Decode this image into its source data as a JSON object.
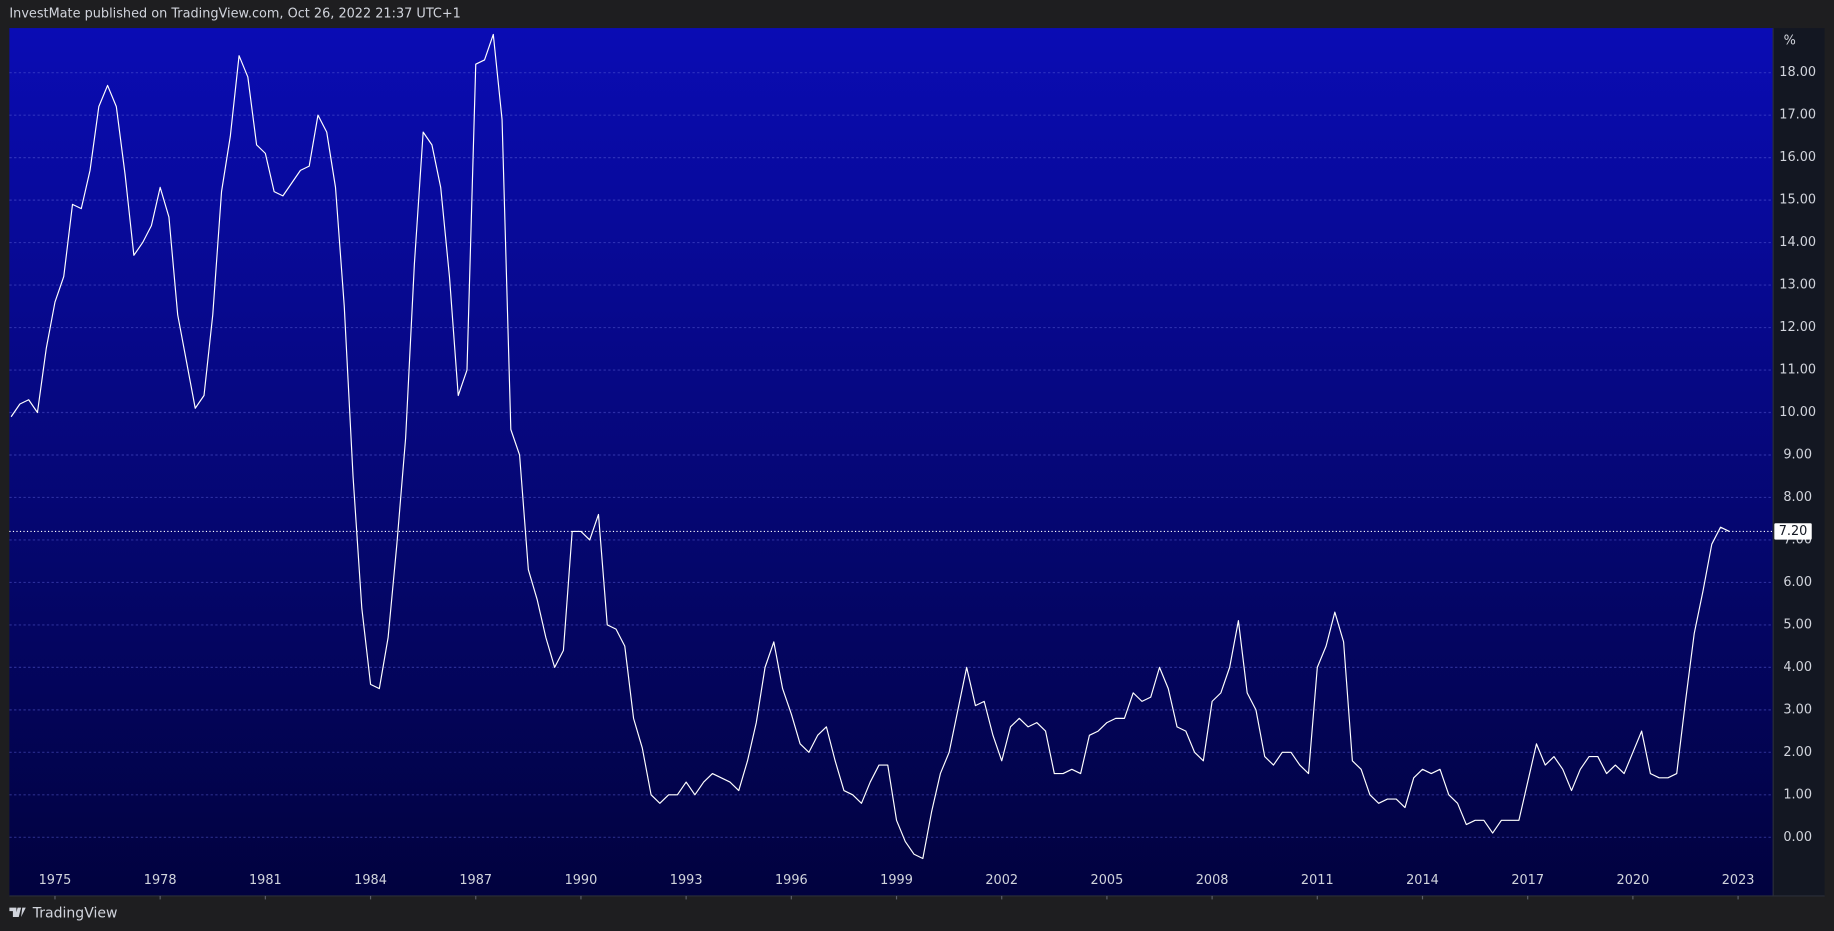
{
  "header": "InvestMate published on TradingView.com, Oct 26, 2022 21:37 UTC+1",
  "footer": "TradingView",
  "chart_data": {
    "type": "line",
    "unit": "%",
    "color": "#ffffff",
    "grid": true,
    "last_label": "7.20",
    "xlim": [
      1973.7,
      2024.0
    ],
    "xticks": [
      1975,
      1978,
      1981,
      1984,
      1987,
      1990,
      1993,
      1996,
      1999,
      2002,
      2005,
      2008,
      2011,
      2014,
      2017,
      2020,
      2023
    ],
    "ylim": [
      -1.38,
      19.05
    ],
    "yticks": [
      {
        "value": 0,
        "label": "0.00"
      },
      {
        "value": 1,
        "label": "1.00"
      },
      {
        "value": 2,
        "label": "2.00"
      },
      {
        "value": 3,
        "label": "3.00"
      },
      {
        "value": 4,
        "label": "4.00"
      },
      {
        "value": 5,
        "label": "5.00"
      },
      {
        "value": 6,
        "label": "6.00"
      },
      {
        "value": 7,
        "label": "7.00"
      },
      {
        "value": 8,
        "label": "8.00"
      },
      {
        "value": 9,
        "label": "9.00"
      },
      {
        "value": 10,
        "label": "10.00"
      },
      {
        "value": 11,
        "label": "11.00"
      },
      {
        "value": 12,
        "label": "12.00"
      },
      {
        "value": 13,
        "label": "13.00"
      },
      {
        "value": 14,
        "label": "14.00"
      },
      {
        "value": 15,
        "label": "15.00"
      },
      {
        "value": 16,
        "label": "16.00"
      },
      {
        "value": 17,
        "label": "17.00"
      },
      {
        "value": 18,
        "label": "18.00"
      }
    ],
    "x": [
      1973.75,
      1974,
      1974.25,
      1974.5,
      1974.75,
      1975,
      1975.25,
      1975.5,
      1975.75,
      1976,
      1976.25,
      1976.5,
      1976.75,
      1977,
      1977.25,
      1977.5,
      1977.75,
      1978,
      1978.25,
      1978.5,
      1978.75,
      1979,
      1979.25,
      1979.5,
      1979.75,
      1980,
      1980.25,
      1980.5,
      1980.75,
      1981,
      1981.25,
      1981.5,
      1981.75,
      1982,
      1982.25,
      1982.5,
      1982.75,
      1983,
      1983.25,
      1983.5,
      1983.75,
      1984,
      1984.25,
      1984.5,
      1984.75,
      1985,
      1985.25,
      1985.5,
      1985.75,
      1986,
      1986.25,
      1986.5,
      1986.75,
      1987,
      1987.25,
      1987.5,
      1987.75,
      1988,
      1988.25,
      1988.5,
      1988.75,
      1989,
      1989.25,
      1989.5,
      1989.75,
      1990,
      1990.25,
      1990.5,
      1990.75,
      1991,
      1991.25,
      1991.5,
      1991.75,
      1992,
      1992.25,
      1992.5,
      1992.75,
      1993,
      1993.25,
      1993.5,
      1993.75,
      1994,
      1994.25,
      1994.5,
      1994.75,
      1995,
      1995.25,
      1995.5,
      1995.75,
      1996,
      1996.25,
      1996.5,
      1996.75,
      1997,
      1997.25,
      1997.5,
      1997.75,
      1998,
      1998.25,
      1998.5,
      1998.75,
      1999,
      1999.25,
      1999.5,
      1999.75,
      2000,
      2000.25,
      2000.5,
      2000.75,
      2001,
      2001.25,
      2001.5,
      2001.75,
      2002,
      2002.25,
      2002.5,
      2002.75,
      2003,
      2003.25,
      2003.5,
      2003.75,
      2004,
      2004.25,
      2004.5,
      2004.75,
      2005,
      2005.25,
      2005.5,
      2005.75,
      2006,
      2006.25,
      2006.5,
      2006.75,
      2007,
      2007.25,
      2007.5,
      2007.75,
      2008,
      2008.25,
      2008.5,
      2008.75,
      2009,
      2009.25,
      2009.5,
      2009.75,
      2010,
      2010.25,
      2010.5,
      2010.75,
      2011,
      2011.25,
      2011.5,
      2011.75,
      2012,
      2012.25,
      2012.5,
      2012.75,
      2013,
      2013.25,
      2013.5,
      2013.75,
      2014,
      2014.25,
      2014.5,
      2014.75,
      2015,
      2015.25,
      2015.5,
      2015.75,
      2016,
      2016.25,
      2016.5,
      2016.75,
      2017,
      2017.25,
      2017.5,
      2017.75,
      2018,
      2018.25,
      2018.5,
      2018.75,
      2019,
      2019.25,
      2019.5,
      2019.75,
      2020,
      2020.25,
      2020.5,
      2020.75,
      2021,
      2021.25,
      2021.5,
      2021.75,
      2022,
      2022.25,
      2022.5,
      2022.75
    ],
    "values": [
      9.9,
      10.2,
      10.3,
      10.0,
      11.5,
      12.6,
      13.2,
      14.9,
      14.8,
      15.7,
      17.2,
      17.7,
      17.2,
      15.6,
      13.7,
      14.0,
      14.4,
      15.3,
      14.6,
      12.3,
      11.2,
      10.1,
      10.4,
      12.3,
      15.2,
      16.5,
      18.4,
      17.9,
      16.3,
      16.1,
      15.2,
      15.1,
      15.4,
      15.7,
      15.8,
      17.0,
      16.6,
      15.3,
      12.5,
      8.5,
      5.4,
      3.6,
      3.5,
      4.7,
      6.9,
      9.4,
      13.5,
      16.6,
      16.3,
      15.3,
      13.2,
      10.4,
      11.0,
      18.2,
      18.3,
      18.9,
      16.9,
      9.6,
      9.0,
      6.3,
      5.6,
      4.7,
      4.0,
      4.4,
      7.2,
      7.2,
      7.0,
      7.6,
      5.0,
      4.9,
      4.5,
      2.8,
      2.1,
      1.0,
      0.8,
      1.0,
      1.0,
      1.3,
      1.0,
      1.3,
      1.5,
      1.4,
      1.3,
      1.1,
      1.8,
      2.7,
      4.0,
      4.6,
      3.5,
      2.9,
      2.2,
      2.0,
      2.4,
      2.6,
      1.8,
      1.1,
      1.0,
      0.8,
      1.3,
      1.7,
      1.7,
      0.4,
      -0.1,
      -0.4,
      -0.5,
      0.6,
      1.5,
      2.0,
      3.0,
      4.0,
      3.1,
      3.2,
      2.4,
      1.8,
      2.6,
      2.8,
      2.6,
      2.7,
      2.5,
      1.5,
      1.5,
      1.6,
      1.5,
      2.4,
      2.5,
      2.7,
      2.8,
      2.8,
      3.4,
      3.2,
      3.3,
      4.0,
      3.5,
      2.6,
      2.5,
      2.0,
      1.8,
      3.2,
      3.4,
      4.0,
      5.1,
      3.4,
      3.0,
      1.9,
      1.7,
      2.0,
      2.0,
      1.7,
      1.5,
      4.0,
      4.5,
      5.3,
      4.6,
      1.8,
      1.6,
      1.0,
      0.8,
      0.9,
      0.9,
      0.7,
      1.4,
      1.6,
      1.5,
      1.6,
      1.0,
      0.8,
      0.3,
      0.4,
      0.4,
      0.1,
      0.4,
      0.4,
      0.4,
      1.3,
      2.2,
      1.7,
      1.9,
      1.6,
      1.1,
      1.6,
      1.9,
      1.9,
      1.5,
      1.7,
      1.5,
      2.0,
      2.5,
      1.5,
      1.4,
      1.4,
      1.5,
      3.2,
      4.8,
      5.8,
      6.9,
      7.3,
      7.2
    ]
  }
}
